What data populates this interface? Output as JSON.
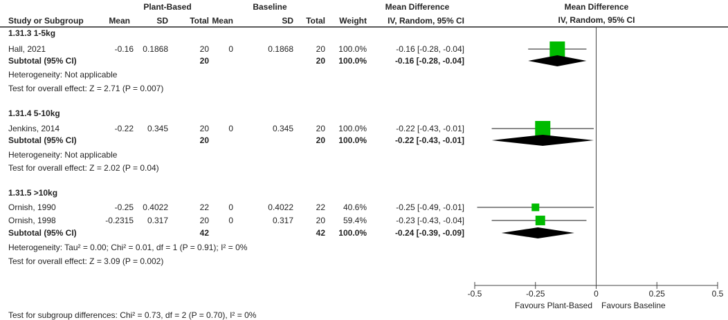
{
  "header": {
    "group1": "Plant-Based",
    "group2": "Baseline",
    "effect_table": "Mean Difference",
    "effect_table_sub": "IV, Random, 95% CI",
    "effect_plot": "Mean Difference",
    "effect_plot_sub": "IV, Random, 95% CI",
    "columns": [
      "Study or Subgroup",
      "Mean",
      "SD",
      "Total",
      "Mean",
      "SD",
      "Total",
      "Weight",
      "IV, Random, 95% CI"
    ]
  },
  "subgroups": [
    {
      "title": "1.31.3 1-5kg",
      "studies": [
        {
          "name": "Hall, 2021",
          "m1": "-0.16",
          "sd1": "0.1868",
          "n1": "20",
          "m2": "0",
          "sd2": "0.1868",
          "n2": "20",
          "weight": "100.0%",
          "ci": "-0.16 [-0.28, -0.04]",
          "md": -0.16,
          "lo": -0.28,
          "hi": -0.04,
          "w": 100
        }
      ],
      "subtotal": {
        "label": "Subtotal (95% CI)",
        "n1": "20",
        "n2": "20",
        "weight": "100.0%",
        "ci": "-0.16 [-0.28, -0.04]",
        "md": -0.16,
        "lo": -0.28,
        "hi": -0.04
      },
      "heterogeneity": "Heterogeneity: Not applicable",
      "overall": "Test for overall effect: Z = 2.71 (P = 0.007)"
    },
    {
      "title": "1.31.4 5-10kg",
      "studies": [
        {
          "name": "Jenkins, 2014",
          "m1": "-0.22",
          "sd1": "0.345",
          "n1": "20",
          "m2": "0",
          "sd2": "0.345",
          "n2": "20",
          "weight": "100.0%",
          "ci": "-0.22 [-0.43, -0.01]",
          "md": -0.22,
          "lo": -0.43,
          "hi": -0.01,
          "w": 100
        }
      ],
      "subtotal": {
        "label": "Subtotal (95% CI)",
        "n1": "20",
        "n2": "20",
        "weight": "100.0%",
        "ci": "-0.22 [-0.43, -0.01]",
        "md": -0.22,
        "lo": -0.43,
        "hi": -0.01
      },
      "heterogeneity": "Heterogeneity: Not applicable",
      "overall": "Test for overall effect: Z = 2.02 (P = 0.04)"
    },
    {
      "title": "1.31.5 >10kg",
      "studies": [
        {
          "name": "Ornish, 1990",
          "m1": "-0.25",
          "sd1": "0.4022",
          "n1": "22",
          "m2": "0",
          "sd2": "0.4022",
          "n2": "22",
          "weight": "40.6%",
          "ci": "-0.25 [-0.49, -0.01]",
          "md": -0.25,
          "lo": -0.49,
          "hi": -0.01,
          "w": 40.6
        },
        {
          "name": "Ornish, 1998",
          "m1": "-0.2315",
          "sd1": "0.317",
          "n1": "20",
          "m2": "0",
          "sd2": "0.317",
          "n2": "20",
          "weight": "59.4%",
          "ci": "-0.23 [-0.43, -0.04]",
          "md": -0.23,
          "lo": -0.43,
          "hi": -0.04,
          "w": 59.4
        }
      ],
      "subtotal": {
        "label": "Subtotal (95% CI)",
        "n1": "42",
        "n2": "42",
        "weight": "100.0%",
        "ci": "-0.24 [-0.39, -0.09]",
        "md": -0.24,
        "lo": -0.39,
        "hi": -0.09
      },
      "heterogeneity": "Heterogeneity: Tau² = 0.00; Chi² = 0.01, df = 1 (P = 0.91); I² = 0%",
      "overall": "Test for overall effect: Z = 3.09 (P = 0.002)"
    }
  ],
  "subgroup_test": "Test for subgroup differences: Chi² = 0.73, df = 2 (P = 0.70), I² = 0%",
  "chart_data": {
    "type": "forest",
    "xlim": [
      -0.5,
      0.5
    ],
    "ticks": [
      "-0.5",
      "-0.25",
      "0",
      "0.25",
      "0.5"
    ],
    "tick_values": [
      -0.5,
      -0.25,
      0,
      0.25,
      0.5
    ],
    "xlabel_left": "Favours Plant-Based",
    "xlabel_right": "Favours Baseline",
    "colors": {
      "study_marker": "#00bb00",
      "summary_diamond": "#000000",
      "lines": "#444444"
    }
  }
}
